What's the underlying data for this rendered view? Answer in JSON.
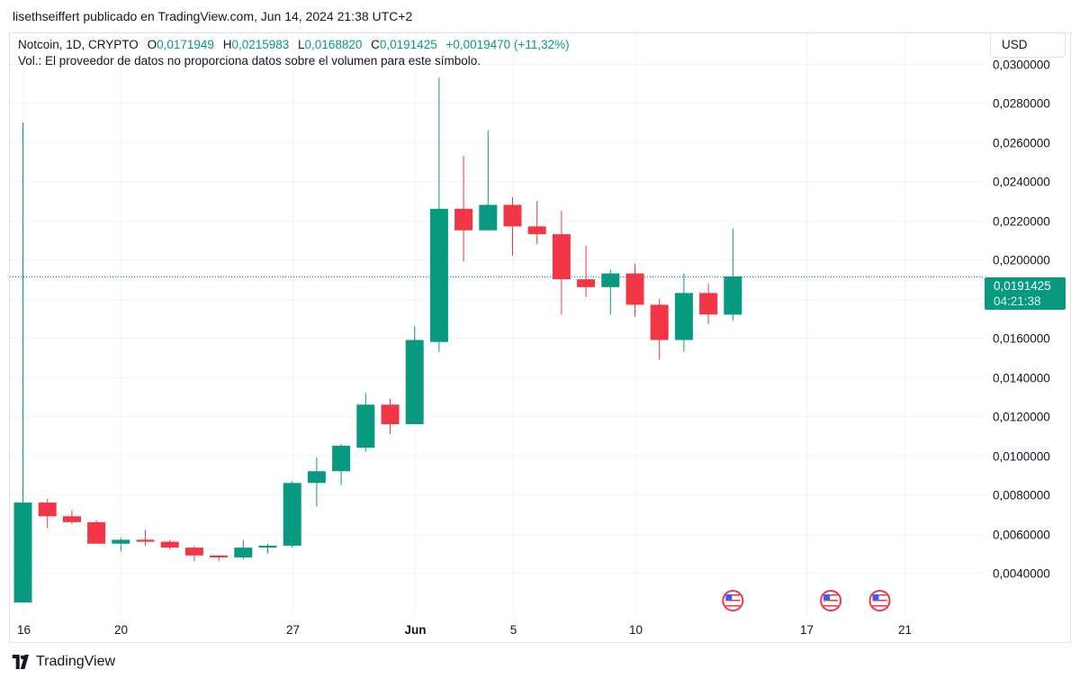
{
  "header": {
    "published_by": "lisethseiffert publicado en TradingView.com, Jun 14, 2024 21:38 UTC+2"
  },
  "legend": {
    "symbol": "Notcoin, 1D, CRYPTO",
    "o_label": "O",
    "o_value": "0,0171949",
    "h_label": "H",
    "h_value": "0,0215983",
    "l_label": "L",
    "l_value": "0,0168820",
    "c_label": "C",
    "c_value": "0,0191425",
    "change": "+0,0019470 (+11,32%)",
    "volume_note": "Vol.: El proveedor de datos no proporciona datos sobre el volumen para este símbolo."
  },
  "currency_button": "USD",
  "last_price": {
    "value": "0,0191425",
    "countdown": "04:21:38"
  },
  "footer": {
    "brand": "TradingView"
  },
  "colors": {
    "up": "#089981",
    "down": "#f23645",
    "grid": "#f0f3fa",
    "text": "#131722"
  },
  "chart_data": {
    "type": "candlestick",
    "y_axis": {
      "min": 0.0025,
      "max": 0.0305,
      "ticks": [
        0.004,
        0.006,
        0.008,
        0.01,
        0.012,
        0.014,
        0.016,
        0.018,
        0.02,
        0.022,
        0.024,
        0.026,
        0.028,
        0.03
      ],
      "tick_labels": [
        "0,0040000",
        "0,0060000",
        "0,0080000",
        "0,0100000",
        "0,0120000",
        "0,0140000",
        "0,0160000",
        "0,0180000",
        "0,0200000",
        "0,0220000",
        "0,0240000",
        "0,0260000",
        "0,0280000",
        "0,0300000"
      ],
      "position": "right"
    },
    "x_axis": {
      "ticks": [
        {
          "day": 0,
          "label": "16",
          "bold": false
        },
        {
          "day": 4,
          "label": "20",
          "bold": false
        },
        {
          "day": 11,
          "label": "27",
          "bold": false
        },
        {
          "day": 16,
          "label": "Jun",
          "bold": true
        },
        {
          "day": 20,
          "label": "5",
          "bold": false
        },
        {
          "day": 25,
          "label": "10",
          "bold": false
        },
        {
          "day": 32,
          "label": "17",
          "bold": false
        },
        {
          "day": 36,
          "label": "21",
          "bold": false
        }
      ]
    },
    "grid": true,
    "candles": [
      {
        "date": "May 16",
        "open": 0.0025,
        "high": 0.027,
        "low": 0.0025,
        "close": 0.0076
      },
      {
        "date": "May 17",
        "open": 0.0076,
        "high": 0.0078,
        "low": 0.0063,
        "close": 0.0069
      },
      {
        "date": "May 18",
        "open": 0.0069,
        "high": 0.0072,
        "low": 0.0065,
        "close": 0.0066
      },
      {
        "date": "May 19",
        "open": 0.0066,
        "high": 0.0067,
        "low": 0.0055,
        "close": 0.0055
      },
      {
        "date": "May 20",
        "open": 0.0055,
        "high": 0.0058,
        "low": 0.0051,
        "close": 0.0057
      },
      {
        "date": "May 21",
        "open": 0.0057,
        "high": 0.0062,
        "low": 0.0054,
        "close": 0.0056
      },
      {
        "date": "May 22",
        "open": 0.0056,
        "high": 0.0057,
        "low": 0.0052,
        "close": 0.0053
      },
      {
        "date": "May 23",
        "open": 0.0053,
        "high": 0.0054,
        "low": 0.0046,
        "close": 0.0049
      },
      {
        "date": "May 24",
        "open": 0.0049,
        "high": 0.0049,
        "low": 0.0046,
        "close": 0.0048
      },
      {
        "date": "May 25",
        "open": 0.0048,
        "high": 0.0057,
        "low": 0.0047,
        "close": 0.0053
      },
      {
        "date": "May 26",
        "open": 0.0053,
        "high": 0.0055,
        "low": 0.005,
        "close": 0.0054
      },
      {
        "date": "May 27",
        "open": 0.0054,
        "high": 0.0087,
        "low": 0.0053,
        "close": 0.0086
      },
      {
        "date": "May 28",
        "open": 0.0086,
        "high": 0.0099,
        "low": 0.0074,
        "close": 0.0092
      },
      {
        "date": "May 29",
        "open": 0.0092,
        "high": 0.0106,
        "low": 0.0085,
        "close": 0.0105
      },
      {
        "date": "May 30",
        "open": 0.0104,
        "high": 0.0132,
        "low": 0.0102,
        "close": 0.0126
      },
      {
        "date": "May 31",
        "open": 0.0126,
        "high": 0.0129,
        "low": 0.0111,
        "close": 0.0116
      },
      {
        "date": "Jun 1",
        "open": 0.0116,
        "high": 0.0166,
        "low": 0.0116,
        "close": 0.0159
      },
      {
        "date": "Jun 2",
        "open": 0.0158,
        "high": 0.0293,
        "low": 0.0153,
        "close": 0.0226
      },
      {
        "date": "Jun 3",
        "open": 0.0226,
        "high": 0.0253,
        "low": 0.0199,
        "close": 0.0215
      },
      {
        "date": "Jun 4",
        "open": 0.0215,
        "high": 0.0266,
        "low": 0.0215,
        "close": 0.0228
      },
      {
        "date": "Jun 5",
        "open": 0.0228,
        "high": 0.0232,
        "low": 0.0202,
        "close": 0.0217
      },
      {
        "date": "Jun 6",
        "open": 0.0217,
        "high": 0.023,
        "low": 0.0208,
        "close": 0.0213
      },
      {
        "date": "Jun 7",
        "open": 0.0213,
        "high": 0.0225,
        "low": 0.0172,
        "close": 0.019
      },
      {
        "date": "Jun 8",
        "open": 0.019,
        "high": 0.0207,
        "low": 0.0181,
        "close": 0.0186
      },
      {
        "date": "Jun 9",
        "open": 0.0186,
        "high": 0.0195,
        "low": 0.0172,
        "close": 0.0193
      },
      {
        "date": "Jun 10",
        "open": 0.0193,
        "high": 0.0198,
        "low": 0.0171,
        "close": 0.0177
      },
      {
        "date": "Jun 11",
        "open": 0.0177,
        "high": 0.018,
        "low": 0.0149,
        "close": 0.0159
      },
      {
        "date": "Jun 12",
        "open": 0.0159,
        "high": 0.0193,
        "low": 0.0153,
        "close": 0.0183
      },
      {
        "date": "Jun 13",
        "open": 0.0183,
        "high": 0.0188,
        "low": 0.0167,
        "close": 0.0172
      },
      {
        "date": "Jun 14",
        "open": 0.0171949,
        "high": 0.0215983,
        "low": 0.016882,
        "close": 0.0191425
      }
    ],
    "last_price_line": 0.0191425,
    "event_markers": [
      {
        "day": 29,
        "icon": "us-flag-icon"
      },
      {
        "day": 33,
        "icon": "us-flag-icon"
      },
      {
        "day": 35,
        "icon": "us-flag-icon"
      }
    ]
  }
}
